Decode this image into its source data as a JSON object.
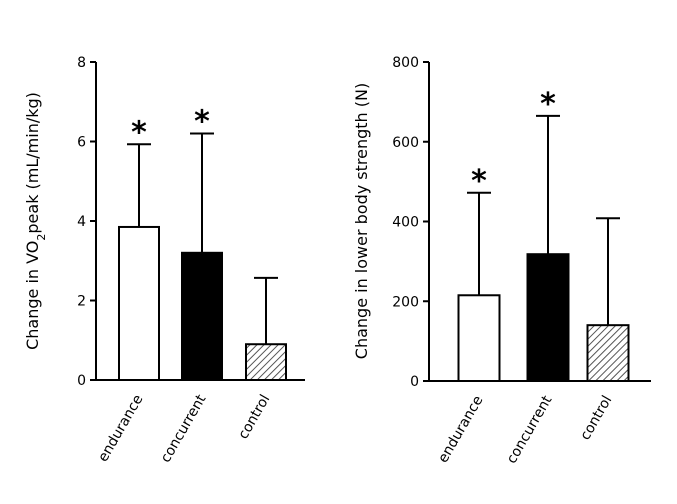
{
  "chart_data": [
    {
      "type": "bar",
      "ylabel_main": "Change in VO",
      "ylabel_sub": "2",
      "ylabel_rest": "peak (mL/min/kg)",
      "ylim": [
        0,
        8
      ],
      "yticks": [
        0,
        2,
        4,
        6,
        8
      ],
      "categories": [
        "endurance",
        "concurrent",
        "control"
      ],
      "values": [
        3.85,
        3.2,
        0.9
      ],
      "errors_upper": [
        5.93,
        6.2,
        2.57
      ],
      "fills": [
        "white",
        "black",
        "hatched"
      ],
      "significant": [
        true,
        true,
        false
      ],
      "marker": "*"
    },
    {
      "type": "bar",
      "ylabel": "Change in lower body strength (N)",
      "ylim": [
        0,
        800
      ],
      "yticks": [
        0,
        200,
        400,
        600,
        800
      ],
      "categories": [
        "endurance",
        "concurrent",
        "control"
      ],
      "values": [
        215,
        318,
        140
      ],
      "errors_upper": [
        472,
        665,
        408
      ],
      "fills": [
        "white",
        "black",
        "hatched"
      ],
      "significant": [
        true,
        true,
        false
      ],
      "marker": "*"
    }
  ]
}
